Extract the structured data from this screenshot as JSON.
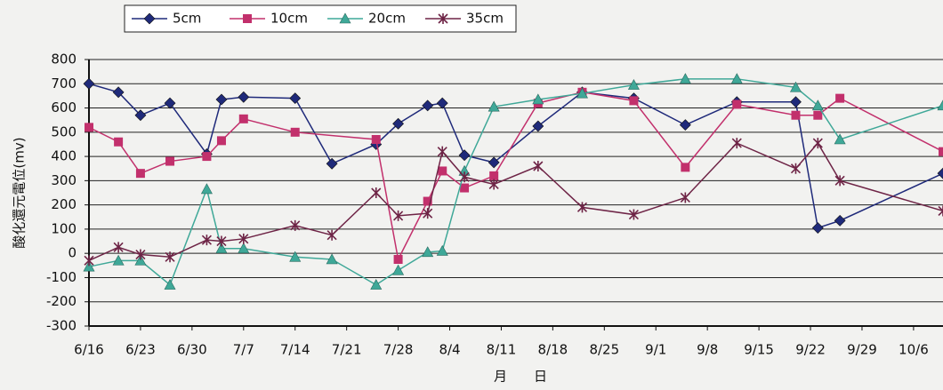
{
  "chart_data": {
    "type": "line",
    "ylabel": "酸化還元電位(mv)",
    "xlabel": "月　　日",
    "xlim": [
      "6/16",
      "10/10"
    ],
    "xticks": [
      "6/16",
      "6/23",
      "6/30",
      "7/7",
      "7/14",
      "7/21",
      "7/28",
      "8/4",
      "8/11",
      "8/18",
      "8/25",
      "9/1",
      "9/8",
      "9/15",
      "9/22",
      "9/29",
      "10/6"
    ],
    "ylim": [
      -300,
      800
    ],
    "yticks": [
      -300,
      -200,
      -100,
      0,
      100,
      200,
      300,
      400,
      500,
      600,
      700,
      800
    ],
    "grid": true,
    "series": [
      {
        "name": "5cm",
        "color": "#1f2a7a",
        "marker": "diamond",
        "x": [
          "6/16",
          "6/20",
          "6/23",
          "6/27",
          "7/2",
          "7/4",
          "7/7",
          "7/14",
          "7/19",
          "7/25",
          "7/28",
          "8/1",
          "8/3",
          "8/6",
          "8/10",
          "8/16",
          "8/22",
          "8/29",
          "9/5",
          "9/12",
          "9/20",
          "9/23",
          "9/26",
          "10/10"
        ],
        "values": [
          700,
          665,
          570,
          620,
          410,
          635,
          645,
          640,
          370,
          450,
          535,
          610,
          620,
          405,
          375,
          525,
          665,
          640,
          530,
          625,
          625,
          105,
          135,
          330
        ]
      },
      {
        "name": "10cm",
        "color": "#c2306c",
        "marker": "square",
        "x": [
          "6/16",
          "6/20",
          "6/23",
          "6/27",
          "7/2",
          "7/4",
          "7/7",
          "7/14",
          "7/25",
          "7/28",
          "8/1",
          "8/3",
          "8/6",
          "8/10",
          "8/16",
          "8/22",
          "8/29",
          "9/5",
          "9/12",
          "9/20",
          "9/23",
          "9/26",
          "10/10"
        ],
        "values": [
          520,
          460,
          330,
          380,
          400,
          465,
          555,
          500,
          470,
          -25,
          215,
          340,
          270,
          320,
          620,
          665,
          630,
          355,
          615,
          570,
          570,
          640,
          420
        ]
      },
      {
        "name": "20cm",
        "color": "#3fa898",
        "marker": "triangle",
        "x": [
          "6/16",
          "6/20",
          "6/23",
          "6/27",
          "7/2",
          "7/4",
          "7/7",
          "7/14",
          "7/19",
          "7/25",
          "7/28",
          "8/1",
          "8/3",
          "8/6",
          "8/10",
          "8/16",
          "8/22",
          "8/29",
          "9/5",
          "9/12",
          "9/20",
          "9/23",
          "9/26",
          "10/10"
        ],
        "values": [
          -55,
          -30,
          -30,
          -130,
          265,
          20,
          20,
          -15,
          -25,
          -130,
          -70,
          5,
          10,
          340,
          605,
          635,
          660,
          695,
          720,
          720,
          685,
          610,
          470,
          610
        ]
      },
      {
        "name": "35cm",
        "color": "#6e2446",
        "marker": "asterisk",
        "x": [
          "6/16",
          "6/20",
          "6/23",
          "6/27",
          "7/2",
          "7/4",
          "7/7",
          "7/14",
          "7/19",
          "7/25",
          "7/28",
          "8/1",
          "8/3",
          "8/6",
          "8/10",
          "8/16",
          "8/22",
          "8/29",
          "9/5",
          "9/12",
          "9/20",
          "9/23",
          "9/26",
          "10/10"
        ],
        "values": [
          -30,
          25,
          -5,
          -15,
          55,
          50,
          60,
          115,
          75,
          250,
          155,
          165,
          420,
          315,
          285,
          360,
          190,
          160,
          230,
          455,
          350,
          455,
          300,
          175
        ]
      }
    ]
  }
}
